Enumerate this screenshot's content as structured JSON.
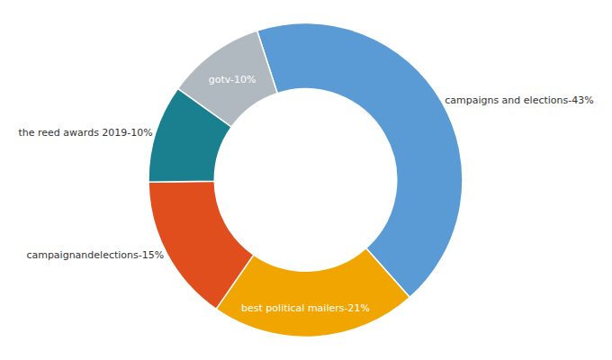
{
  "chart_data": {
    "type": "pie",
    "categories": [
      "campaigns and elections",
      "best political mailers",
      "campaignandelections",
      "the reed awards 2019",
      "gotv"
    ],
    "values": [
      43,
      21,
      15,
      10,
      10
    ],
    "value_labels": [
      "campaigns and elections-43%",
      "best political mailers-21%",
      "campaignandelections-15%",
      "the reed awards 2019-10%",
      "gotv-10%"
    ],
    "colors": [
      "#5b9bd5",
      "#f0a500",
      "#e04e1e",
      "#1a7f8e",
      "#b0b8c0"
    ],
    "data_labels": true
  }
}
